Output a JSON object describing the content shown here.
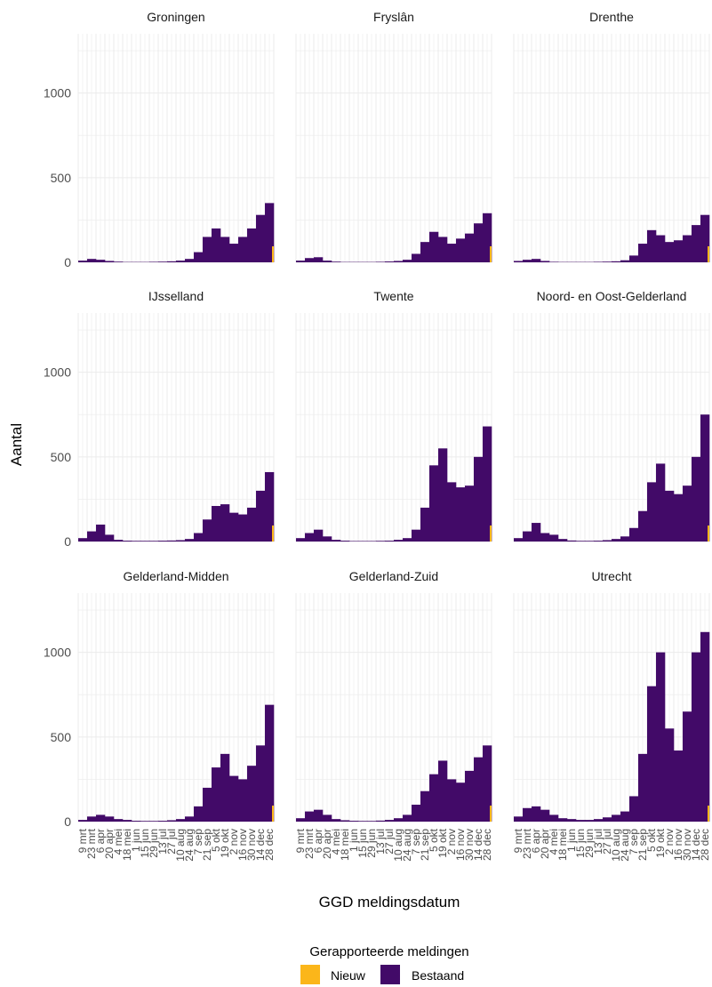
{
  "chart_data": {
    "type": "bar",
    "layout": "facet-grid-3x3",
    "xlabel": "GGD meldingsdatum",
    "ylabel": "Aantal",
    "ylim": [
      0,
      1350
    ],
    "yticks": [
      0,
      500,
      1000
    ],
    "grid": true,
    "stacked": true,
    "x_tick_labels": [
      "9 mrt",
      "23 mrt",
      "6 apr",
      "20 apr",
      "4 mei",
      "18 mei",
      "1 jun",
      "15 jun",
      "29 jun",
      "13 jul",
      "27 jul",
      "10 aug",
      "24 aug",
      "7 sep",
      "21 sep",
      "5 okt",
      "19 okt",
      "2 nov",
      "16 nov",
      "30 nov",
      "14 dec",
      "28 dec"
    ],
    "legend": {
      "title": "Gerapporteerde meldingen",
      "position": "bottom",
      "entries": [
        {
          "name": "Nieuw",
          "color": "#fbb61a"
        },
        {
          "name": "Bestaand",
          "color": "#420a68"
        }
      ]
    },
    "panels": [
      {
        "title": "Groningen",
        "x": [
          "9 mrt",
          "23 mrt",
          "6 apr",
          "20 apr",
          "4 mei",
          "18 mei",
          "1 jun",
          "15 jun",
          "29 jun",
          "13 jul",
          "27 jul",
          "10 aug",
          "24 aug",
          "7 sep",
          "21 sep",
          "5 okt",
          "19 okt",
          "2 nov",
          "16 nov",
          "30 nov",
          "14 dec",
          "28 dec"
        ],
        "values": [
          10,
          20,
          15,
          8,
          4,
          2,
          2,
          2,
          3,
          4,
          6,
          10,
          20,
          60,
          150,
          200,
          150,
          110,
          150,
          200,
          280,
          350
        ]
      },
      {
        "title": "Fryslân",
        "x": [
          "9 mrt",
          "23 mrt",
          "6 apr",
          "20 apr",
          "4 mei",
          "18 mei",
          "1 jun",
          "15 jun",
          "29 jun",
          "13 jul",
          "27 jul",
          "10 aug",
          "24 aug",
          "7 sep",
          "21 sep",
          "5 okt",
          "19 okt",
          "2 nov",
          "16 nov",
          "30 nov",
          "14 dec",
          "28 dec"
        ],
        "values": [
          10,
          25,
          30,
          10,
          4,
          2,
          2,
          2,
          2,
          3,
          5,
          8,
          15,
          50,
          120,
          180,
          150,
          110,
          140,
          170,
          230,
          290
        ]
      },
      {
        "title": "Drenthe",
        "x": [
          "9 mrt",
          "23 mrt",
          "6 apr",
          "20 apr",
          "4 mei",
          "18 mei",
          "1 jun",
          "15 jun",
          "29 jun",
          "13 jul",
          "27 jul",
          "10 aug",
          "24 aug",
          "7 sep",
          "21 sep",
          "5 okt",
          "19 okt",
          "2 nov",
          "16 nov",
          "30 nov",
          "14 dec",
          "28 dec"
        ],
        "values": [
          8,
          15,
          20,
          8,
          3,
          2,
          2,
          2,
          2,
          3,
          4,
          6,
          12,
          40,
          110,
          190,
          160,
          120,
          130,
          160,
          220,
          280
        ]
      },
      {
        "title": "IJsselland",
        "x": [
          "9 mrt",
          "23 mrt",
          "6 apr",
          "20 apr",
          "4 mei",
          "18 mei",
          "1 jun",
          "15 jun",
          "29 jun",
          "13 jul",
          "27 jul",
          "10 aug",
          "24 aug",
          "7 sep",
          "21 sep",
          "5 okt",
          "19 okt",
          "2 nov",
          "16 nov",
          "30 nov",
          "14 dec",
          "28 dec"
        ],
        "values": [
          20,
          60,
          100,
          40,
          10,
          5,
          4,
          4,
          4,
          5,
          6,
          8,
          15,
          50,
          130,
          210,
          220,
          170,
          160,
          200,
          300,
          410
        ]
      },
      {
        "title": "Twente",
        "x": [
          "9 mrt",
          "23 mrt",
          "6 apr",
          "20 apr",
          "4 mei",
          "18 mei",
          "1 jun",
          "15 jun",
          "29 jun",
          "13 jul",
          "27 jul",
          "10 aug",
          "24 aug",
          "7 sep",
          "21 sep",
          "5 okt",
          "19 okt",
          "2 nov",
          "16 nov",
          "30 nov",
          "14 dec",
          "28 dec"
        ],
        "values": [
          20,
          50,
          70,
          30,
          10,
          5,
          3,
          3,
          3,
          4,
          5,
          10,
          20,
          70,
          200,
          450,
          550,
          350,
          320,
          330,
          500,
          680
        ]
      },
      {
        "title": "Noord- en Oost-Gelderland",
        "x": [
          "9 mrt",
          "23 mrt",
          "6 apr",
          "20 apr",
          "4 mei",
          "18 mei",
          "1 jun",
          "15 jun",
          "29 jun",
          "13 jul",
          "27 jul",
          "10 aug",
          "24 aug",
          "7 sep",
          "21 sep",
          "5 okt",
          "19 okt",
          "2 nov",
          "16 nov",
          "30 nov",
          "14 dec",
          "28 dec"
        ],
        "values": [
          20,
          60,
          110,
          50,
          40,
          15,
          6,
          4,
          4,
          5,
          8,
          15,
          30,
          80,
          180,
          350,
          460,
          300,
          280,
          330,
          500,
          750
        ]
      },
      {
        "title": "Gelderland-Midden",
        "x": [
          "9 mrt",
          "23 mrt",
          "6 apr",
          "20 apr",
          "4 mei",
          "18 mei",
          "1 jun",
          "15 jun",
          "29 jun",
          "13 jul",
          "27 jul",
          "10 aug",
          "24 aug",
          "7 sep",
          "21 sep",
          "5 okt",
          "19 okt",
          "2 nov",
          "16 nov",
          "30 nov",
          "14 dec",
          "28 dec"
        ],
        "values": [
          10,
          30,
          40,
          30,
          15,
          10,
          5,
          4,
          4,
          5,
          8,
          15,
          30,
          90,
          200,
          320,
          400,
          270,
          250,
          330,
          450,
          690
        ]
      },
      {
        "title": "Gelderland-Zuid",
        "x": [
          "9 mrt",
          "23 mrt",
          "6 apr",
          "20 apr",
          "4 mei",
          "18 mei",
          "1 jun",
          "15 jun",
          "29 jun",
          "13 jul",
          "27 jul",
          "10 aug",
          "24 aug",
          "7 sep",
          "21 sep",
          "5 okt",
          "19 okt",
          "2 nov",
          "16 nov",
          "30 nov",
          "14 dec",
          "28 dec"
        ],
        "values": [
          20,
          60,
          70,
          40,
          15,
          8,
          5,
          4,
          4,
          6,
          10,
          20,
          40,
          100,
          180,
          280,
          360,
          250,
          230,
          300,
          380,
          450
        ]
      },
      {
        "title": "Utrecht",
        "x": [
          "9 mrt",
          "23 mrt",
          "6 apr",
          "20 apr",
          "4 mei",
          "18 mei",
          "1 jun",
          "15 jun",
          "29 jun",
          "13 jul",
          "27 jul",
          "10 aug",
          "24 aug",
          "7 sep",
          "21 sep",
          "5 okt",
          "19 okt",
          "2 nov",
          "16 nov",
          "30 nov",
          "14 dec",
          "28 dec"
        ],
        "values": [
          30,
          80,
          90,
          70,
          40,
          20,
          15,
          10,
          10,
          15,
          25,
          40,
          60,
          150,
          400,
          800,
          1000,
          550,
          420,
          650,
          1000,
          1120
        ]
      }
    ]
  }
}
